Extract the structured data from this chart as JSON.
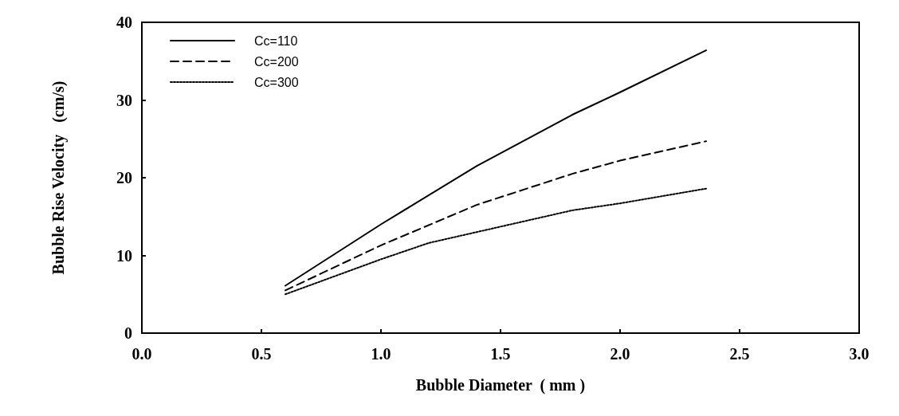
{
  "chart_data": {
    "type": "line",
    "xlabel": "Bubble Diameter  ( mm )",
    "ylabel": "Bubble Rise Velocity   (cm/s)",
    "xlim": [
      0,
      3
    ],
    "xticks": [
      {
        "value": 0,
        "label": "0.0"
      },
      {
        "value": 0.5,
        "label": "0.5"
      },
      {
        "value": 1,
        "label": "1.0"
      },
      {
        "value": 1.5,
        "label": "1.5"
      },
      {
        "value": 2,
        "label": "2.0"
      },
      {
        "value": 2.5,
        "label": "2.5"
      },
      {
        "value": 3,
        "label": "3.0"
      }
    ],
    "ylim": [
      0,
      40
    ],
    "yticks": [
      0,
      10,
      20,
      30,
      40
    ],
    "grid": false,
    "legend": "top left",
    "marker": "none",
    "series": [
      {
        "name": "Cc=110",
        "color": "#000000",
        "line_style": "solid",
        "x": [
          0.6,
          1.0,
          1.4,
          1.8,
          2.0,
          2.36
        ],
        "values": [
          6.1,
          14,
          21.5,
          28.1,
          31,
          36.4
        ]
      },
      {
        "name": "Cc=200",
        "color": "#000000",
        "line_style": "dashed",
        "x": [
          0.6,
          1.0,
          1.4,
          1.8,
          2.0,
          2.36
        ],
        "values": [
          5.5,
          11.3,
          16.5,
          20.5,
          22.2,
          24.7
        ]
      },
      {
        "name": "Cc=300",
        "color": "#000000",
        "line_style": "dotted",
        "x": [
          0.6,
          1.0,
          1.2,
          1.4,
          1.8,
          2.0,
          2.36
        ],
        "values": [
          5.0,
          9.5,
          11.6,
          13.0,
          15.8,
          16.7,
          18.6
        ]
      }
    ]
  }
}
